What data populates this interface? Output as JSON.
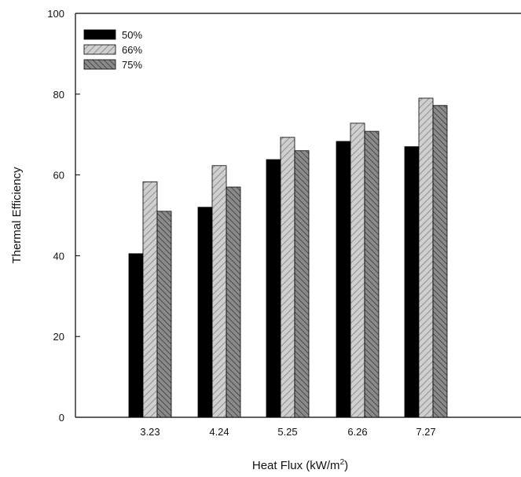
{
  "chart_data": {
    "type": "bar",
    "title": "",
    "xlabel_main": "Heat Flux (kW/m",
    "xlabel_sup": "2",
    "xlabel_end": ")",
    "ylabel": "Thermal  Efficiency",
    "categories": [
      "3.23",
      "4.24",
      "5.25",
      "6.26",
      "7.27"
    ],
    "ylim": [
      0,
      100
    ],
    "yticks": [
      0,
      20,
      40,
      60,
      80,
      100
    ],
    "legend_position": "top-left",
    "series": [
      {
        "name": "50%",
        "values": [
          40.5,
          52,
          63.8,
          68.3,
          67
        ],
        "color": "#000000",
        "pattern": "solid"
      },
      {
        "name": "66%",
        "values": [
          58.3,
          62.3,
          69.3,
          72.8,
          79
        ],
        "color": "#bdbdbd",
        "pattern": "hatch-light"
      },
      {
        "name": "75%",
        "values": [
          51,
          57,
          66,
          70.8,
          77.2
        ],
        "color": "#6f6f6f",
        "pattern": "hatch-dark"
      }
    ]
  }
}
